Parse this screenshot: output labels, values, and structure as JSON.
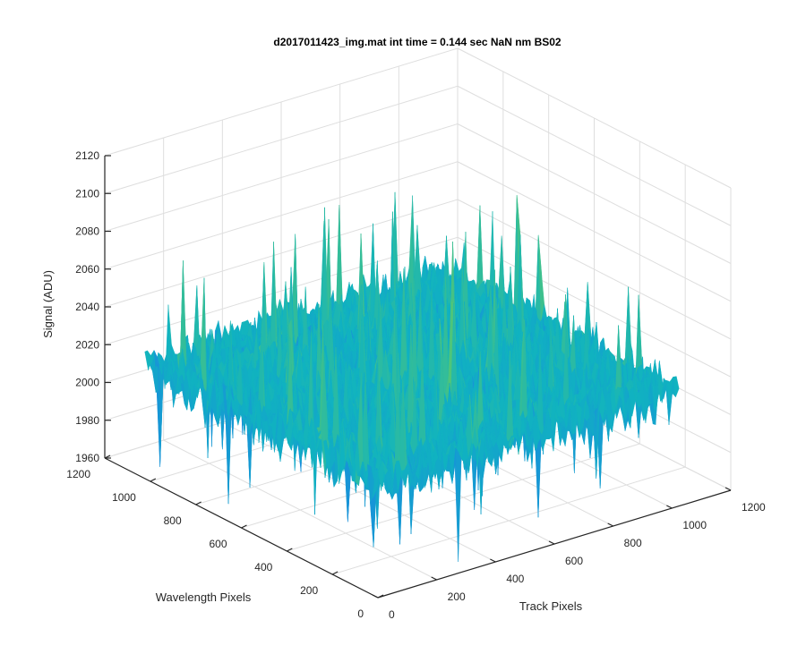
{
  "chart_data": {
    "type": "surface3d",
    "title": "d2017011423_img.mat int time = 0.144 sec  NaN nm BS02",
    "xlabel": "Track Pixels",
    "ylabel": "Wavelength Pixels",
    "zlabel": "Signal (ADU)",
    "xlim": [
      0,
      1200
    ],
    "ylim": [
      0,
      1200
    ],
    "zlim": [
      1960,
      2120
    ],
    "xticks": [
      "0",
      "200",
      "400",
      "600",
      "800",
      "1000",
      "1200"
    ],
    "yticks": [
      "0",
      "200",
      "400",
      "600",
      "800",
      "1000",
      "1200"
    ],
    "zticks": [
      "1960",
      "1980",
      "2000",
      "2020",
      "2040",
      "2060",
      "2080",
      "2100",
      "2120"
    ],
    "surface_extent": {
      "x": [
        0,
        1024
      ],
      "y": [
        0,
        1024
      ]
    },
    "baseline_signal": 2020,
    "peak_signal": 2110,
    "min_signal": 1966,
    "grid": true,
    "colormap": [
      "#3E26A8",
      "#1B85E3",
      "#10B3C0",
      "#5EC96A",
      "#C3C33A",
      "#F0D82C"
    ]
  }
}
